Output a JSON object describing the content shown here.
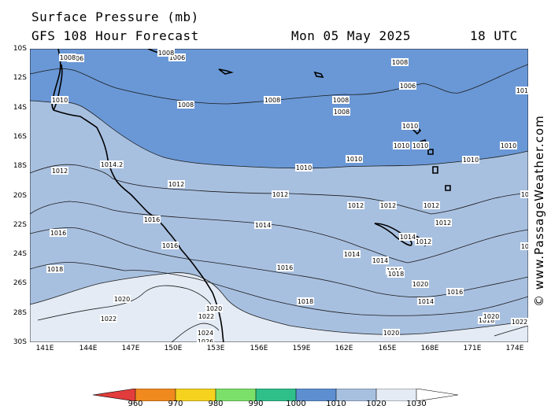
{
  "header": {
    "title": "Surface Pressure (mb)",
    "forecast": "GFS 108 Hour Forecast",
    "date": "Mon 05 May 2025",
    "time": "18 UTC"
  },
  "credit": "© www.PassageWeather.com",
  "axes": {
    "lat_labels": [
      "10S",
      "12S",
      "14S",
      "16S",
      "18S",
      "20S",
      "22S",
      "24S",
      "26S",
      "28S",
      "30S"
    ],
    "lon_labels": [
      "141E",
      "144E",
      "147E",
      "150E",
      "153E",
      "156E",
      "159E",
      "162E",
      "165E",
      "168E",
      "171E",
      "174E"
    ]
  },
  "legend": {
    "values": [
      "960",
      "970",
      "980",
      "990",
      "1000",
      "1010",
      "1020",
      "1030"
    ],
    "colors": [
      "#e33c3c",
      "#f08a1e",
      "#f5d21e",
      "#7be06a",
      "#2fc08a",
      "#5d8fd0",
      "#a8c0e0",
      "#e4ebf5"
    ]
  },
  "map_colors": {
    "band_1006_1010": "#6a98d6",
    "band_1010_1020": "#a8c0e0",
    "band_1020_plus": "#e4ebf5",
    "land": "#000000"
  },
  "isobar_labels": [
    "1006",
    "1006",
    "1006",
    "1008",
    "1008",
    "1008",
    "1008",
    "1008",
    "1008",
    "1008",
    "1010",
    "1010",
    "1010",
    "1010",
    "1010",
    "1010",
    "1010",
    "1010",
    "1010",
    "1012",
    "1012",
    "1012",
    "1012",
    "1012",
    "1012",
    "1012",
    "1012",
    "1012",
    "1012",
    "1014",
    "1014",
    "1014",
    "1014",
    "1014",
    "1014",
    "1014",
    "1016",
    "1016",
    "1016",
    "1016",
    "1016",
    "1016",
    "1018",
    "1018",
    "1018",
    "1018",
    "1020",
    "1020",
    "1020",
    "1020",
    "1020",
    "1022",
    "1022",
    "1022",
    "1024",
    "1026"
  ]
}
